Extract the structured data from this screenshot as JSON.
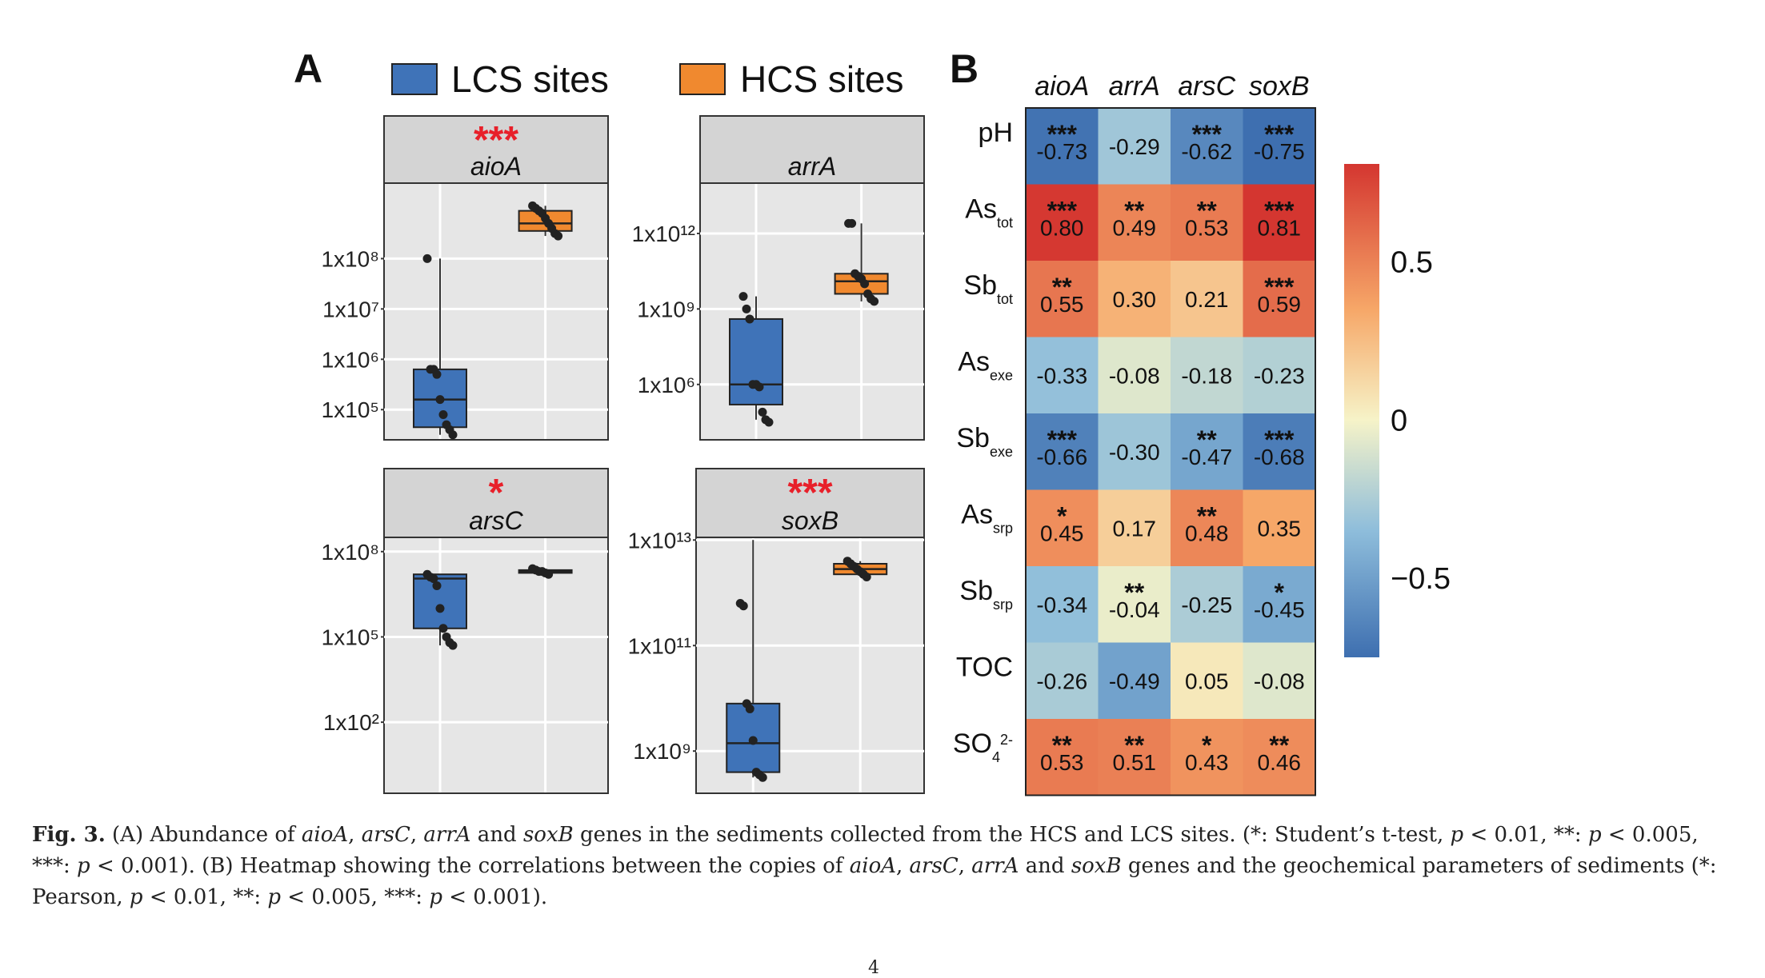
{
  "panel_labels": {
    "a": "A",
    "b": "B"
  },
  "legend": {
    "lcs": "LCS sites",
    "hcs": "HCS sites",
    "lcs_color": "#3f73b8",
    "hcs_color": "#f0892f"
  },
  "chart_data": [
    {
      "type": "box",
      "title": "aioA",
      "significance": "***",
      "groups": [
        "LCS sites",
        "HCS sites"
      ],
      "ytick_labels": [
        "1x10⁸",
        "1x10⁷",
        "1x10⁶",
        "1x10⁵"
      ],
      "ytick_log10": [
        8,
        7,
        6,
        5
      ],
      "ylim_log10": [
        4.4,
        9.5
      ],
      "boxes": [
        {
          "group": "LCS sites",
          "q1": 4.65,
          "median": 5.2,
          "q3": 5.8,
          "whisker_low": 4.5,
          "whisker_high": 8.0,
          "points": [
            8.0,
            5.8,
            5.8,
            5.7,
            5.2,
            4.9,
            4.7,
            4.6,
            4.5
          ]
        },
        {
          "group": "HCS sites",
          "q1": 8.55,
          "median": 8.7,
          "q3": 8.95,
          "whisker_low": 8.45,
          "whisker_high": 9.05,
          "points": [
            9.05,
            9.0,
            8.95,
            8.9,
            8.8,
            8.7,
            8.6,
            8.5,
            8.45
          ]
        }
      ]
    },
    {
      "type": "box",
      "title": "arrA",
      "significance": "",
      "groups": [
        "LCS sites",
        "HCS sites"
      ],
      "ytick_labels": [
        "1x10¹²",
        "1x10⁹",
        "1x10⁶"
      ],
      "ytick_log10": [
        12,
        9,
        6
      ],
      "ylim_log10": [
        3.8,
        14
      ],
      "boxes": [
        {
          "group": "LCS sites",
          "q1": 5.2,
          "median": 6.0,
          "q3": 8.6,
          "whisker_low": 4.6,
          "whisker_high": 9.5,
          "points": [
            9.5,
            9.0,
            8.6,
            6.0,
            6.0,
            5.9,
            4.9,
            4.6,
            4.5
          ]
        },
        {
          "group": "HCS sites",
          "q1": 9.6,
          "median": 10.1,
          "q3": 10.4,
          "whisker_low": 9.3,
          "whisker_high": 12.4,
          "points": [
            12.4,
            12.4,
            10.4,
            10.3,
            10.2,
            10.0,
            9.6,
            9.4,
            9.3
          ]
        }
      ]
    },
    {
      "type": "box",
      "title": "arsC",
      "significance": "*",
      "groups": [
        "LCS sites",
        "HCS sites"
      ],
      "ytick_labels": [
        "1x10⁸",
        "1x10⁵",
        "1x10²"
      ],
      "ytick_log10": [
        8,
        5,
        2
      ],
      "ylim_log10": [
        -0.5,
        8.5
      ],
      "boxes": [
        {
          "group": "LCS sites",
          "q1": 5.3,
          "median": 7.05,
          "q3": 7.2,
          "whisker_low": 4.7,
          "whisker_high": 7.2,
          "points": [
            7.2,
            7.1,
            7.05,
            6.8,
            6.0,
            5.3,
            5.0,
            4.8,
            4.7
          ]
        },
        {
          "group": "HCS sites",
          "q1": 7.25,
          "median": 7.3,
          "q3": 7.35,
          "whisker_low": 7.2,
          "whisker_high": 7.4,
          "points": [
            7.4,
            7.35,
            7.3,
            7.3,
            7.25,
            7.2
          ]
        }
      ]
    },
    {
      "type": "box",
      "title": "soxB",
      "significance": "***",
      "groups": [
        "LCS sites",
        "HCS sites"
      ],
      "ytick_labels": [
        "1x10¹³",
        "1x10¹¹",
        "1x10⁹"
      ],
      "ytick_log10": [
        13,
        11,
        9
      ],
      "ylim_log10": [
        8.2,
        13.05
      ],
      "boxes": [
        {
          "group": "LCS sites",
          "q1": 8.6,
          "median": 9.15,
          "q3": 9.9,
          "whisker_low": 8.5,
          "whisker_high": 13.0,
          "points": [
            11.8,
            11.75,
            9.9,
            9.8,
            9.2,
            8.6,
            8.55,
            8.5
          ]
        },
        {
          "group": "HCS sites",
          "q1": 12.35,
          "median": 12.45,
          "q3": 12.55,
          "whisker_low": 12.3,
          "whisker_high": 12.6,
          "points": [
            12.6,
            12.55,
            12.5,
            12.45,
            12.4,
            12.35,
            12.3
          ]
        }
      ]
    },
    {
      "type": "heatmap",
      "columns": [
        "aioA",
        "arrA",
        "arsC",
        "soxB"
      ],
      "rows": [
        {
          "base": "pH",
          "sub": "",
          "sup": ""
        },
        {
          "base": "As",
          "sub": "tot",
          "sup": ""
        },
        {
          "base": "Sb",
          "sub": "tot",
          "sup": ""
        },
        {
          "base": "As",
          "sub": "exe",
          "sup": ""
        },
        {
          "base": "Sb",
          "sub": "exe",
          "sup": ""
        },
        {
          "base": "As",
          "sub": "srp",
          "sup": ""
        },
        {
          "base": "Sb",
          "sub": "srp",
          "sup": ""
        },
        {
          "base": "TOC",
          "sub": "",
          "sup": ""
        },
        {
          "base": "SO",
          "sub": "4",
          "sup": "2-"
        }
      ],
      "values": [
        [
          -0.73,
          -0.29,
          -0.62,
          -0.75
        ],
        [
          0.8,
          0.49,
          0.53,
          0.81
        ],
        [
          0.55,
          0.3,
          0.21,
          0.59
        ],
        [
          -0.33,
          -0.08,
          -0.18,
          -0.23
        ],
        [
          -0.66,
          -0.3,
          -0.47,
          -0.68
        ],
        [
          0.45,
          0.17,
          0.48,
          0.35
        ],
        [
          -0.34,
          -0.04,
          -0.25,
          -0.45
        ],
        [
          -0.26,
          -0.49,
          0.05,
          -0.08
        ],
        [
          0.53,
          0.51,
          0.43,
          0.46
        ]
      ],
      "value_labels": [
        [
          "-0.73",
          "-0.29",
          "-0.62",
          "-0.75"
        ],
        [
          "0.80",
          "0.49",
          "0.53",
          "0.81"
        ],
        [
          "0.55",
          "0.30",
          "0.21",
          "0.59"
        ],
        [
          "-0.33",
          "-0.08",
          "-0.18",
          "-0.23"
        ],
        [
          "-0.66",
          "-0.30",
          "-0.47",
          "-0.68"
        ],
        [
          "0.45",
          "0.17",
          "0.48",
          "0.35"
        ],
        [
          "-0.34",
          "-0.04",
          "-0.25",
          "-0.45"
        ],
        [
          "-0.26",
          "-0.49",
          "0.05",
          "-0.08"
        ],
        [
          "0.53",
          "0.51",
          "0.43",
          "0.46"
        ]
      ],
      "stars": [
        [
          "***",
          "",
          "***",
          "***"
        ],
        [
          "***",
          "**",
          "**",
          "***"
        ],
        [
          "**",
          "",
          "",
          "***"
        ],
        [
          "",
          "",
          "",
          ""
        ],
        [
          "***",
          "",
          "**",
          "***"
        ],
        [
          "*",
          "",
          "**",
          ""
        ],
        [
          "",
          "**",
          "",
          "*"
        ],
        [
          "",
          "",
          "",
          ""
        ],
        [
          "**",
          "**",
          "*",
          "**"
        ]
      ],
      "colorbar": {
        "range": [
          -0.75,
          0.81
        ],
        "tick_values": [
          0.5,
          0,
          -0.5
        ],
        "tick_labels": [
          "0.5",
          "0",
          "−0.5"
        ]
      }
    }
  ],
  "caption": {
    "label": "Fig. 3.",
    "parts": [
      {
        "t": " (A) Abundance of "
      },
      {
        "t": "aioA",
        "i": true
      },
      {
        "t": ", "
      },
      {
        "t": "arsC",
        "i": true
      },
      {
        "t": ", "
      },
      {
        "t": "arrA",
        "i": true
      },
      {
        "t": " and "
      },
      {
        "t": "soxB",
        "i": true
      },
      {
        "t": " genes in the sediments collected from the HCS and LCS sites. (*: Student’s t-test, "
      },
      {
        "t": "p",
        "i": true
      },
      {
        "t": " < 0.01, **: "
      },
      {
        "t": "p",
        "i": true
      },
      {
        "t": " < 0.005, ***: "
      },
      {
        "t": "p",
        "i": true
      },
      {
        "t": " < 0.001). (B) Heatmap showing the correlations between the copies of "
      },
      {
        "t": "aioA",
        "i": true
      },
      {
        "t": ", "
      },
      {
        "t": "arsC",
        "i": true
      },
      {
        "t": ", "
      },
      {
        "t": "arrA",
        "i": true
      },
      {
        "t": " and "
      },
      {
        "t": "soxB",
        "i": true
      },
      {
        "t": " genes and the geochemical parameters of sediments (*: Pearson, "
      },
      {
        "t": "p",
        "i": true
      },
      {
        "t": " < 0.01, **: "
      },
      {
        "t": "p",
        "i": true
      },
      {
        "t": " < 0.005, ***: "
      },
      {
        "t": "p",
        "i": true
      },
      {
        "t": " < 0.001)."
      }
    ]
  },
  "page_number": "4"
}
